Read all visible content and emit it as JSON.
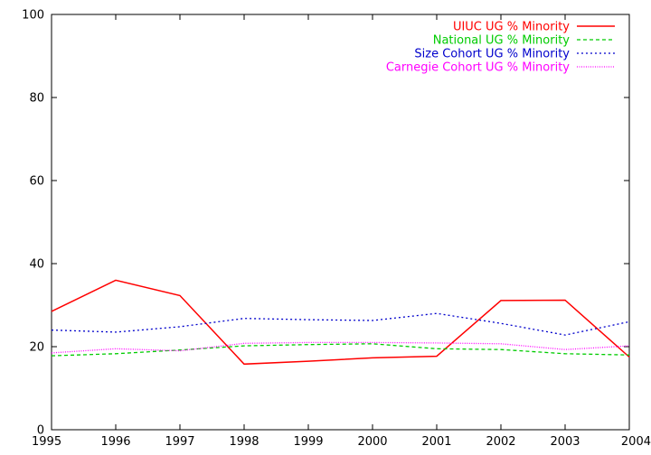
{
  "chart_data": {
    "type": "line",
    "x": [
      1995,
      1996,
      1997,
      1998,
      1999,
      2000,
      2001,
      2002,
      2003,
      2004
    ],
    "xlim": [
      1995,
      2004
    ],
    "ylim": [
      0,
      100
    ],
    "yticks": [
      0,
      20,
      40,
      60,
      80,
      100
    ],
    "xticks": [
      1995,
      1996,
      1997,
      1998,
      1999,
      2000,
      2001,
      2002,
      2003,
      2004
    ],
    "grid": false,
    "legend_position": "top-right",
    "series": [
      {
        "name": "UIUC UG % Minority",
        "color": "#ff0000",
        "dash": "solid",
        "values": [
          28.5,
          36.0,
          32.3,
          15.8,
          16.5,
          17.3,
          17.7,
          31.1,
          31.2,
          17.5
        ]
      },
      {
        "name": "National UG % Minority",
        "color": "#00cc00",
        "dash": "dashed",
        "values": [
          17.8,
          18.3,
          19.2,
          20.2,
          20.5,
          20.7,
          19.5,
          19.3,
          18.3,
          18.0
        ]
      },
      {
        "name": "Size Cohort UG % Minority",
        "color": "#0000cc",
        "dash": "dotted",
        "values": [
          24.0,
          23.5,
          24.8,
          26.8,
          26.5,
          26.3,
          28.0,
          25.6,
          22.8,
          26.0
        ]
      },
      {
        "name": "Carnegie Cohort UG % Minority",
        "color": "#ff00ff",
        "dash": "fine-dotted",
        "values": [
          18.5,
          19.5,
          19.0,
          20.8,
          21.0,
          21.0,
          20.9,
          20.7,
          19.3,
          20.2
        ]
      }
    ]
  }
}
